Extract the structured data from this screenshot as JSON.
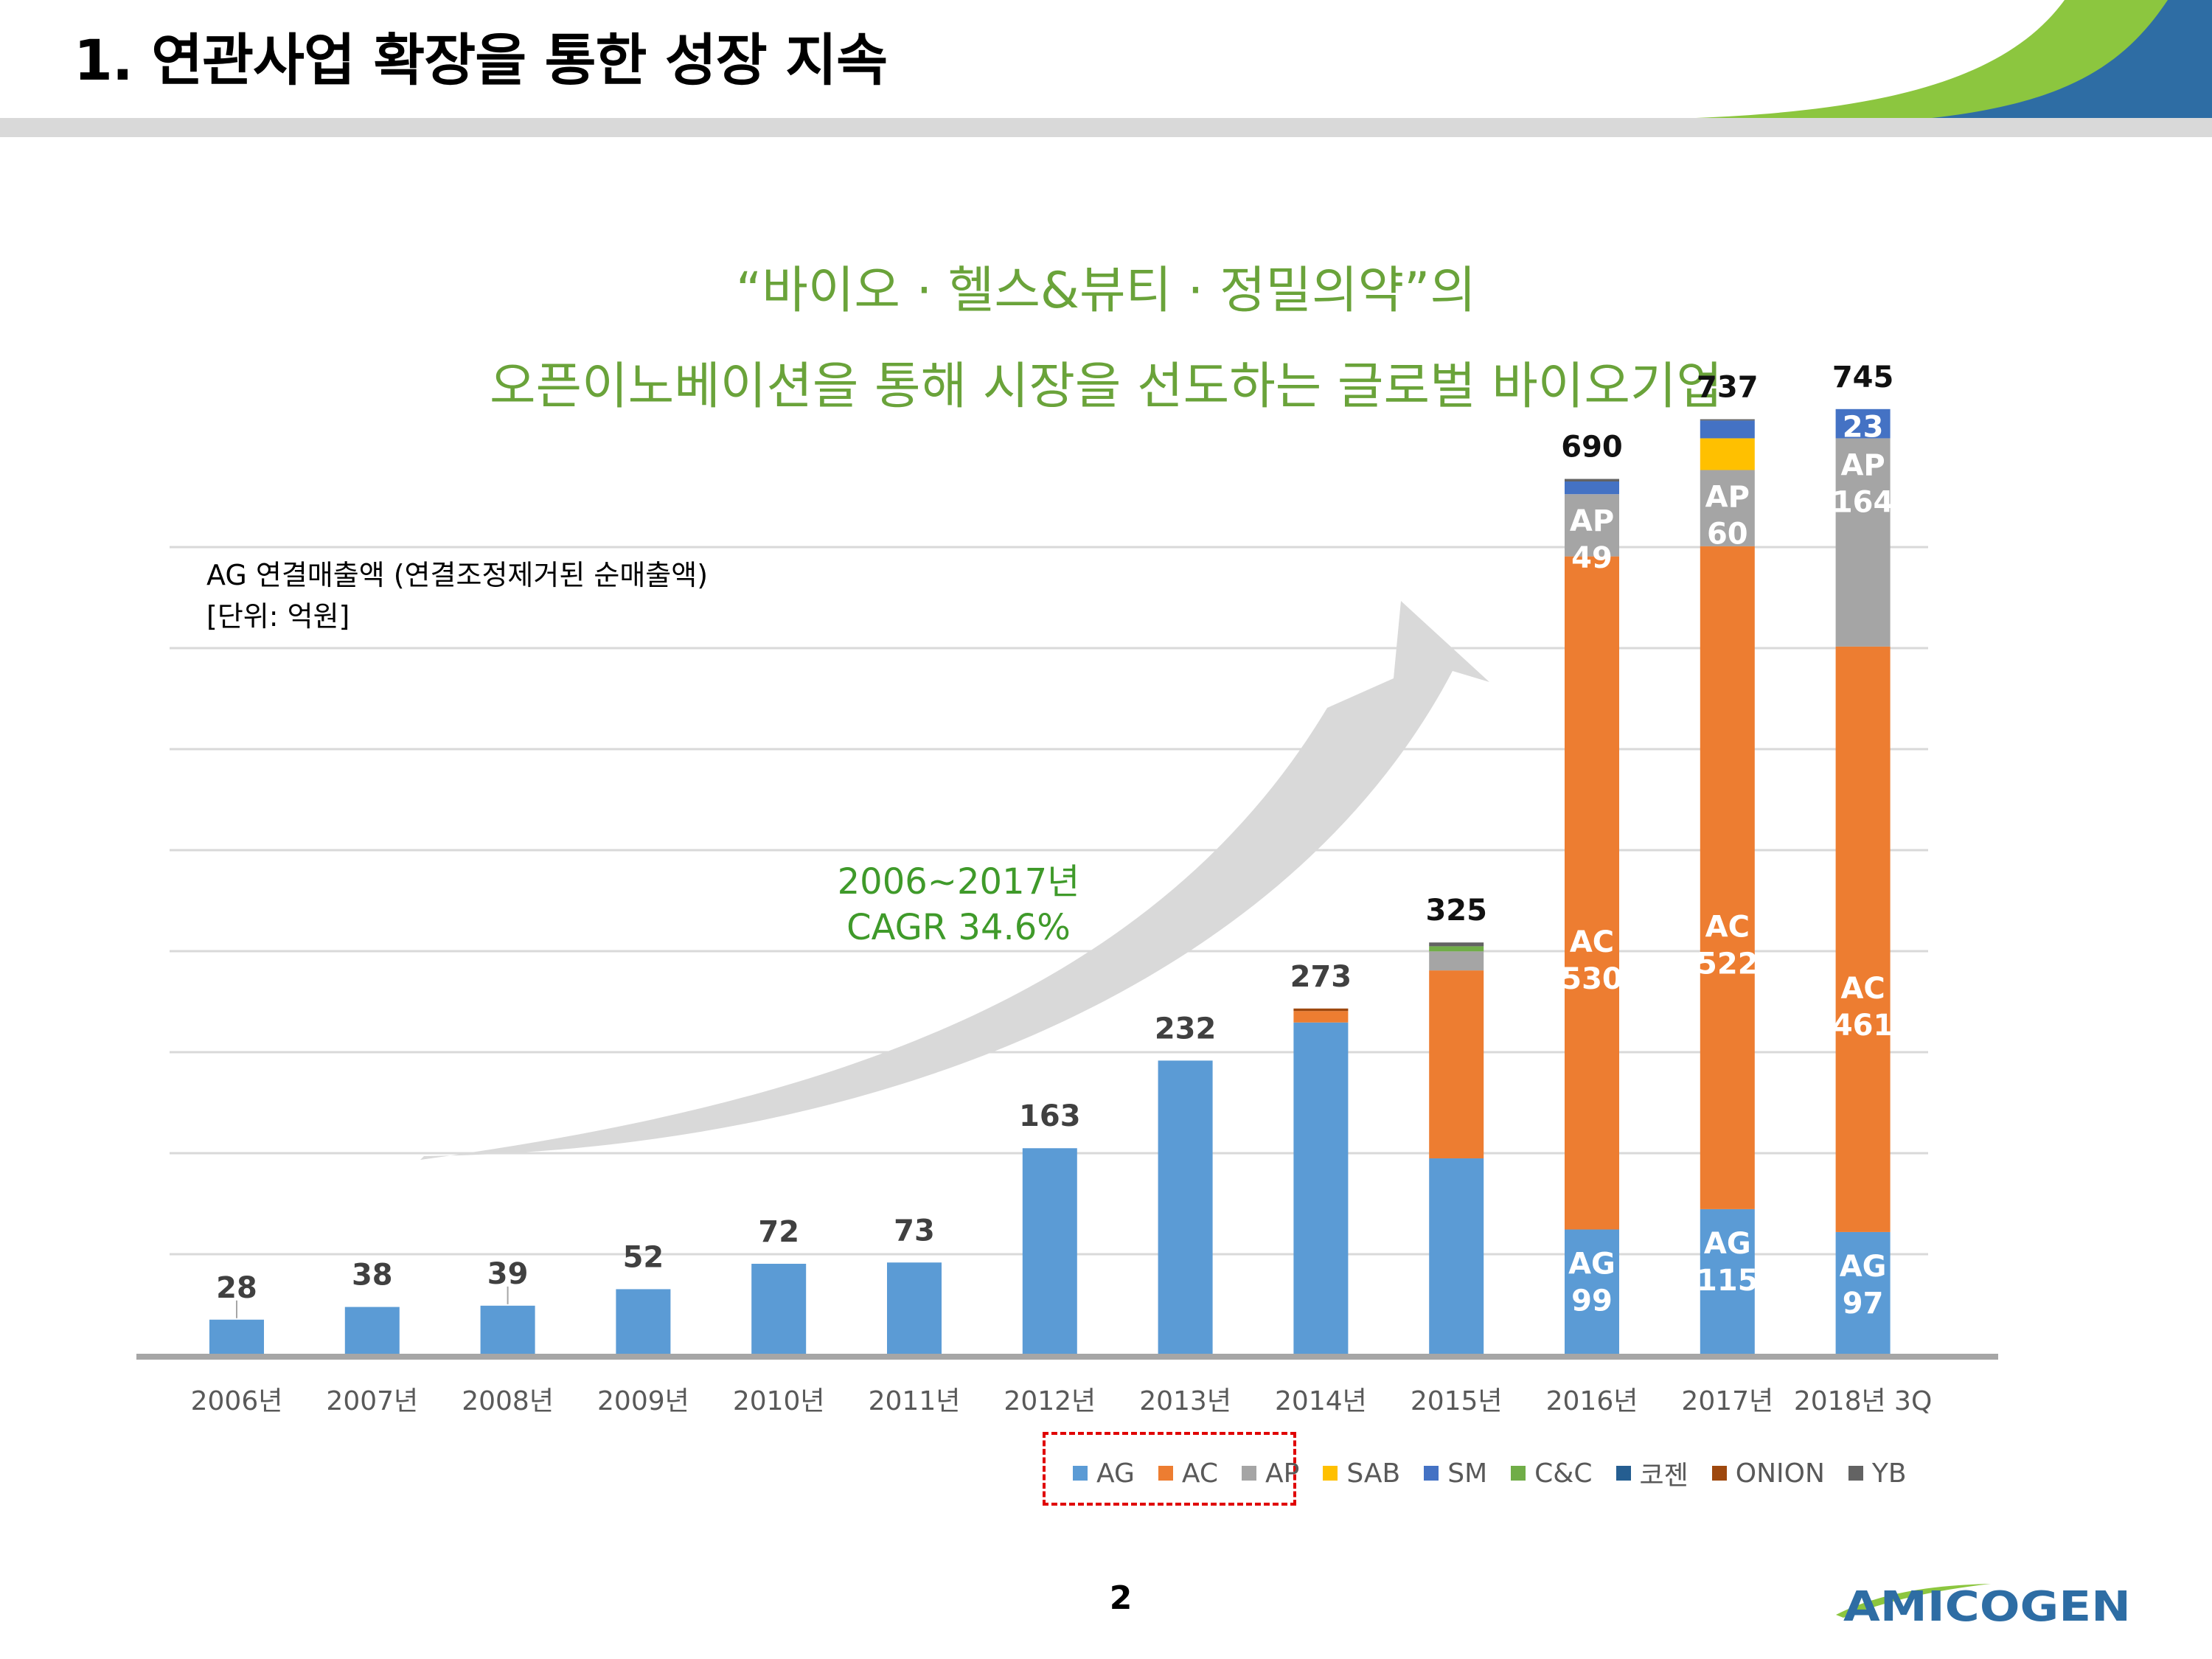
{
  "slide": {
    "title": "1.  연관사업 확장을 통한 성장 지속",
    "headline_1": "“바이오 · 헬스&뷰티 · 정밀의약”의",
    "headline_2": "오픈이노베이션을 통해 시장을 선도하는 글로벌 바이오기업",
    "page_number": "2",
    "logo_text": "AMICOGEN"
  },
  "chart_note": {
    "line1": "AG 연결매출액 (연결조정제거된 순매출액)",
    "line2": "[단위: 억원]"
  },
  "cagr": {
    "line1": "2006~2017년",
    "line2": "CAGR 34.6%"
  },
  "chart_data": {
    "type": "bar",
    "stacked": true,
    "categories": [
      "2006년",
      "2007년",
      "2008년",
      "2009년",
      "2010년",
      "2011년",
      "2012년",
      "2013년",
      "2014년",
      "2015년",
      "2016년",
      "2017년",
      "2018년 3Q"
    ],
    "totals": [
      28,
      38,
      39,
      52,
      72,
      73,
      163,
      232,
      273,
      325,
      690,
      737,
      745
    ],
    "ylim": [
      0,
      805
    ],
    "grid": true,
    "legend_position": "bottom",
    "series": [
      {
        "name": "AG",
        "color": "#5b9bd5",
        "values": [
          28,
          38,
          39,
          52,
          72,
          73,
          163,
          232,
          262,
          155,
          99,
          115,
          97
        ]
      },
      {
        "name": "AC",
        "color": "#ed7d31",
        "values": [
          0,
          0,
          0,
          0,
          0,
          0,
          0,
          0,
          9,
          148,
          530,
          522,
          461
        ]
      },
      {
        "name": "AP",
        "color": "#a5a5a5",
        "values": [
          0,
          0,
          0,
          0,
          0,
          0,
          0,
          0,
          0,
          15,
          49,
          60,
          164
        ]
      },
      {
        "name": "SAB",
        "color": "#ffc000",
        "values": [
          0,
          0,
          0,
          0,
          0,
          0,
          0,
          0,
          0,
          0,
          0,
          25,
          0
        ]
      },
      {
        "name": "SM",
        "color": "#4472c4",
        "values": [
          0,
          0,
          0,
          0,
          0,
          0,
          0,
          0,
          0,
          0,
          10,
          14,
          23
        ]
      },
      {
        "name": "C&C",
        "color": "#70ad47",
        "values": [
          0,
          0,
          0,
          0,
          0,
          0,
          0,
          0,
          0,
          4,
          0,
          0,
          0
        ]
      },
      {
        "name": "코젠",
        "color": "#255e91",
        "values": [
          0,
          0,
          0,
          0,
          0,
          0,
          0,
          0,
          0,
          0,
          0,
          0,
          0
        ]
      },
      {
        "name": "ONION",
        "color": "#9e480e",
        "values": [
          0,
          0,
          0,
          0,
          0,
          0,
          0,
          0,
          2,
          0,
          0,
          0,
          0
        ]
      },
      {
        "name": "YB",
        "color": "#636363",
        "values": [
          0,
          0,
          0,
          0,
          0,
          0,
          0,
          0,
          0,
          3,
          2,
          1,
          0
        ]
      }
    ],
    "segment_labels": [
      {
        "category": "2016년",
        "series": "AG",
        "line1": "AG",
        "line2": "99"
      },
      {
        "category": "2017년",
        "series": "AG",
        "line1": "AG",
        "line2": "115"
      },
      {
        "category": "2018년 3Q",
        "series": "AG",
        "line1": "AG",
        "line2": "97"
      },
      {
        "category": "2016년",
        "series": "AC",
        "line1": "AC",
        "line2": "530"
      },
      {
        "category": "2017년",
        "series": "AC",
        "line1": "AC",
        "line2": "522"
      },
      {
        "category": "2018년 3Q",
        "series": "AC",
        "line1": "AC",
        "line2": "461"
      },
      {
        "category": "2016년",
        "series": "AP",
        "line1": "AP",
        "line2": "49"
      },
      {
        "category": "2017년",
        "series": "AP",
        "line1": "AP",
        "line2": "60"
      },
      {
        "category": "2018년 3Q",
        "series": "AP",
        "line1": "AP",
        "line2": "164"
      },
      {
        "category": "2018년 3Q",
        "series": "SM",
        "line1": "23",
        "line2": ""
      }
    ]
  },
  "colors": {
    "title_bar": "#d9d9d9",
    "headline": "#6aa33a",
    "cagr": "#3f9a2a",
    "brand_green": "#8cc63f",
    "brand_blue": "#2e6da4",
    "legend_highlight": "#e00000"
  }
}
